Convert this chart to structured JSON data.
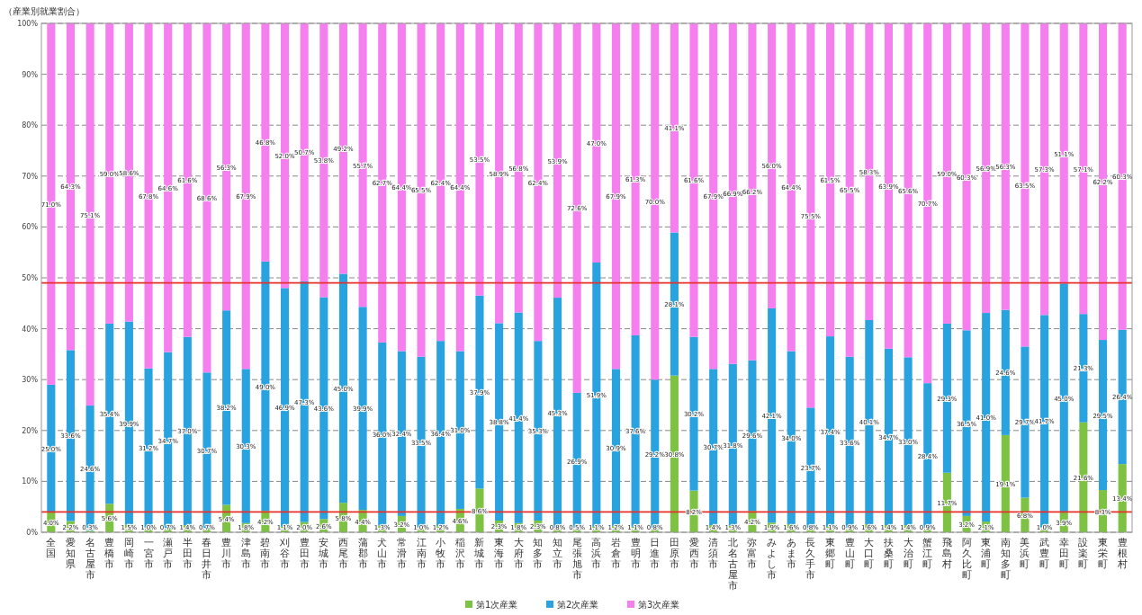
{
  "chart_data": {
    "type": "bar",
    "stacked": true,
    "ylabel": "（産業別就業割合）",
    "categories": [
      "全国",
      "愛知県",
      "名古屋市",
      "豊橋市",
      "岡崎市",
      "一宮市",
      "瀬戸市",
      "半田市",
      "春日井市",
      "豊川市",
      "津島市",
      "碧南市",
      "刈谷市",
      "豊田市",
      "安城市",
      "西尾市",
      "蒲郡市",
      "犬山市",
      "常滑市",
      "江南市",
      "小牧市",
      "稲沢市",
      "新城市",
      "東海市",
      "大府市",
      "知多市",
      "知立市",
      "尾張旭市",
      "高浜市",
      "岩倉市",
      "豊明市",
      "日進市",
      "田原市",
      "愛西市",
      "清須市",
      "北名古屋市",
      "弥富市",
      "みよし市",
      "あま市",
      "長久手市",
      "東郷町",
      "豊山町",
      "大口町",
      "扶桑町",
      "大治町",
      "蟹江町",
      "飛島村",
      "阿久比町",
      "東浦町",
      "南知多町",
      "美浜町",
      "武豊町",
      "幸田町",
      "設楽町",
      "東栄町",
      "豊根村"
    ],
    "series": [
      {
        "name": "第1次産業",
        "color": "#7dc242",
        "values": [
          4.0,
          2.2,
          0.3,
          5.6,
          1.5,
          1.0,
          0.7,
          1.4,
          0.7,
          5.4,
          1.8,
          4.2,
          1.1,
          2.0,
          2.6,
          5.8,
          4.4,
          1.3,
          3.2,
          1.0,
          1.2,
          4.6,
          8.6,
          2.3,
          1.8,
          2.3,
          0.8,
          0.5,
          1.1,
          1.2,
          1.1,
          0.8,
          30.8,
          8.2,
          1.4,
          1.3,
          4.2,
          1.9,
          1.6,
          0.8,
          1.1,
          0.9,
          1.6,
          1.4,
          1.4,
          0.9,
          11.7,
          3.2,
          2.1,
          19.1,
          6.8,
          1.0,
          3.9,
          21.6,
          8.3,
          13.4
        ],
        "value_labels": [
          "4.0%",
          "2.2%",
          "0.3%",
          "5.6%",
          "1.5%",
          "1.0%",
          "0.7%",
          "1.4%",
          "0.7%",
          "5.4%",
          "1.8%",
          "4.2%",
          "1.1%",
          "2.0%",
          "2.6%",
          "5.8%",
          "4.4%",
          "1.3%",
          "3.2%",
          "1.0%",
          "1.2%",
          "4.6%",
          "8.6%",
          "2.3%",
          "1.8%",
          "2.3%",
          "0.8%",
          "0.5%",
          "1.1%",
          "1.2%",
          "1.1%",
          "0.8%",
          "30.8%",
          "8.2%",
          "1.4%",
          "1.3%",
          "4.2%",
          "1.9%",
          "1.6%",
          "0.8%",
          "1.1%",
          "0.9%",
          "1.6%",
          "1.4%",
          "1.4%",
          "0.9%",
          "11.7%",
          "3.2%",
          "2.1%",
          "19.1%",
          "6.8%",
          "1.0%",
          "3.9%",
          "21.6%",
          "8.3%",
          "13.4%"
        ]
      },
      {
        "name": "第2次産業",
        "color": "#29a3e0",
        "values": [
          25.0,
          33.6,
          24.6,
          35.4,
          39.9,
          31.2,
          34.7,
          37.0,
          30.7,
          38.2,
          30.3,
          49.0,
          46.9,
          47.3,
          43.6,
          45.0,
          39.9,
          36.0,
          32.4,
          33.5,
          36.4,
          31.0,
          37.9,
          38.8,
          41.4,
          35.3,
          45.3,
          26.9,
          51.9,
          30.9,
          37.6,
          29.2,
          28.1,
          30.2,
          30.7,
          31.8,
          29.6,
          42.1,
          34.0,
          23.7,
          37.4,
          33.6,
          40.1,
          34.7,
          33.0,
          28.4,
          29.3,
          36.5,
          41.0,
          24.6,
          29.7,
          41.7,
          45.0,
          21.3,
          29.5,
          26.4
        ],
        "value_labels": [
          "25.0%",
          "33.6%",
          "24.6%",
          "35.4%",
          "39.9%",
          "31.2%",
          "34.7%",
          "37.0%",
          "30.7%",
          "38.2%",
          "30.3%",
          "49.0%",
          "46.9%",
          "47.3%",
          "43.6%",
          "45.0%",
          "39.9%",
          "36.0%",
          "32.4%",
          "33.5%",
          "36.4%",
          "31.0%",
          "37.9%",
          "38.8%",
          "41.4%",
          "35.3%",
          "45.3%",
          "26.9%",
          "51.9%",
          "30.9%",
          "37.6%",
          "29.2%",
          "28.1%",
          "30.2%",
          "30.7%",
          "31.8%",
          "29.6%",
          "42.1%",
          "34.0%",
          "23.7%",
          "37.4%",
          "33.6%",
          "40.1%",
          "34.7%",
          "33.0%",
          "28.4%",
          "29.3%",
          "36.5%",
          "41.0%",
          "24.6%",
          "29.7%",
          "41.7%",
          "45.0%",
          "21.3%",
          "29.5%",
          "26.4%"
        ]
      },
      {
        "name": "第3次産業",
        "color": "#f67ff0",
        "values": [
          71.0,
          64.3,
          75.1,
          59.0,
          58.6,
          67.8,
          64.6,
          61.6,
          68.6,
          56.3,
          67.9,
          46.8,
          52.0,
          50.7,
          53.8,
          49.2,
          55.7,
          62.7,
          64.4,
          65.5,
          62.4,
          64.4,
          53.5,
          58.9,
          56.8,
          62.4,
          53.9,
          72.6,
          47.0,
          67.9,
          61.3,
          70.0,
          41.1,
          61.6,
          67.9,
          66.9,
          66.2,
          56.0,
          64.4,
          75.5,
          61.5,
          65.5,
          58.3,
          63.9,
          65.6,
          70.7,
          59.0,
          60.3,
          56.9,
          56.3,
          63.5,
          57.3,
          51.1,
          57.1,
          62.2,
          60.3
        ],
        "value_labels": [
          "71.0%",
          "64.3%",
          "75.1%",
          "59.0%",
          "58.6%",
          "67.8%",
          "64.6%",
          "61.6%",
          "68.6%",
          "56.3%",
          "67.9%",
          "46.8%",
          "52.0%",
          "50.7%",
          "53.8%",
          "49.2%",
          "55.7%",
          "62.7%",
          "64.4%",
          "65.5%",
          "62.4%",
          "64.4%",
          "53.5%",
          "58.9%",
          "56.8%",
          "62.4%",
          "53.9%",
          "72.6%",
          "47.0%",
          "67.9%",
          "61.3%",
          "70.0%",
          "41.1%",
          "61.6%",
          "67.9%",
          "66.9%",
          "66.2%",
          "56.0%",
          "64.4%",
          "75.5%",
          "61.5%",
          "65.5%",
          "58.3%",
          "63.9%",
          "65.6%",
          "70.7%",
          "59.0%",
          "60.3%",
          "56.9%",
          "56.3%",
          "63.5%",
          "57.3%",
          "51.1%",
          "57.1%",
          "62.2%",
          "60.3%"
        ]
      }
    ],
    "ylim": [
      0,
      100
    ],
    "yticks": [
      {
        "value": 0,
        "label": "0%"
      },
      {
        "value": 10,
        "label": "10%"
      },
      {
        "value": 20,
        "label": "20%"
      },
      {
        "value": 30,
        "label": "30%"
      },
      {
        "value": 40,
        "label": "40%"
      },
      {
        "value": 50,
        "label": "50%"
      },
      {
        "value": 60,
        "label": "60%"
      },
      {
        "value": 70,
        "label": "70%"
      },
      {
        "value": 80,
        "label": "80%"
      },
      {
        "value": 90,
        "label": "90%"
      },
      {
        "value": 100,
        "label": "100%"
      }
    ],
    "grid": "y",
    "legend": "bottom",
    "ref_lines": [
      {
        "axis": "y",
        "value": 49,
        "color": "#e8302a"
      },
      {
        "axis": "y",
        "value": 4.0,
        "color": "#e8302a"
      }
    ]
  }
}
